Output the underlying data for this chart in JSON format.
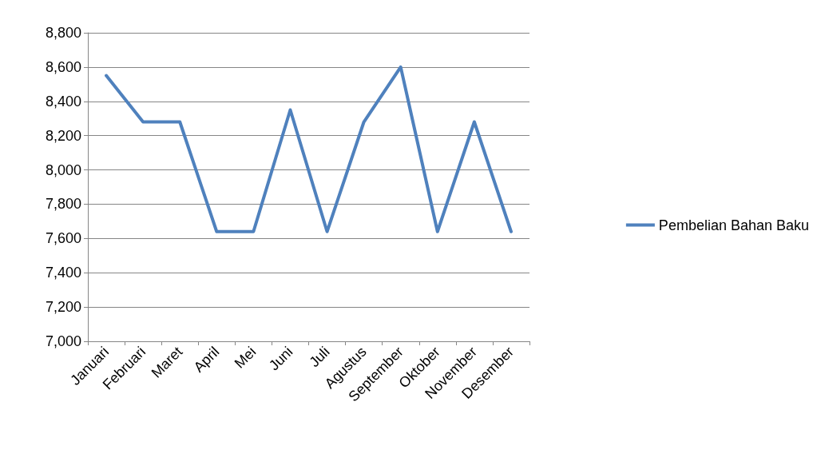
{
  "chart_data": {
    "type": "line",
    "categories": [
      "Januari",
      "Februari",
      "Maret",
      "April",
      "Mei",
      "Juni",
      "Juli",
      "Agustus",
      "September",
      "Oktober",
      "November",
      "Desember"
    ],
    "series": [
      {
        "name": "Pembelian Bahan Baku",
        "color": "#4f81bd",
        "values": [
          8550,
          8280,
          8280,
          7640,
          7640,
          8350,
          7640,
          8280,
          8600,
          7640,
          8280,
          7640
        ]
      }
    ],
    "ylim": [
      7000,
      8800
    ],
    "yticks": [
      {
        "value": 7000,
        "label": "7,000"
      },
      {
        "value": 7200,
        "label": "7,200"
      },
      {
        "value": 7400,
        "label": "7,400"
      },
      {
        "value": 7600,
        "label": "7,600"
      },
      {
        "value": 7800,
        "label": "7,800"
      },
      {
        "value": 8000,
        "label": "8,000"
      },
      {
        "value": 8200,
        "label": "8,200"
      },
      {
        "value": 8400,
        "label": "8,400"
      },
      {
        "value": 8600,
        "label": "8,600"
      },
      {
        "value": 8800,
        "label": "8,800"
      }
    ],
    "grid": "y",
    "legend": "right",
    "marker": "none",
    "line_style": "solid"
  }
}
